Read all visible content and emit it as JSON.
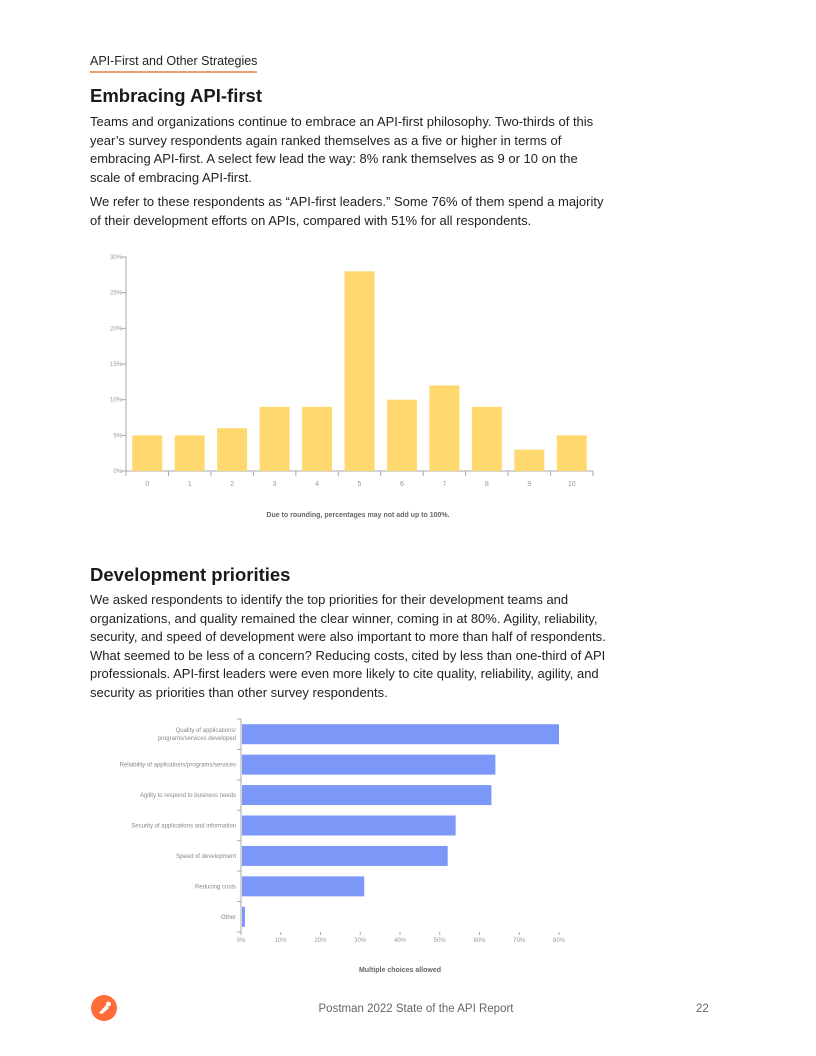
{
  "section_label": "API-First and Other Strategies",
  "section1": {
    "heading": "Embracing API-first",
    "paragraphs": [
      "Teams and organizations continue to embrace an API-first philosophy. Two-thirds of this year’s survey respondents again ranked themselves as a five or higher in terms of embracing API-first. A select few lead the way: 8% rank themselves as 9 or 10 on the scale of embracing API-first.",
      "We refer to these respondents as “API-first leaders.” Some 76% of them spend a majority of their development efforts on APIs, compared with 51% for all respondents."
    ]
  },
  "section2": {
    "heading": "Development priorities",
    "paragraphs": [
      "We asked respondents to identify the top priorities for their development teams and organizations, and quality remained the clear winner, coming in at 80%. Agility, reliability, security, and speed of development were also important to more than half of respondents. What seemed to be less of a concern? Reducing costs, cited by less than one-third of API professionals. API-first leaders were even more likely to cite quality, reliability, agility, and security as priorities than other survey respondents."
    ]
  },
  "chart_data": [
    {
      "type": "bar",
      "orientation": "vertical",
      "categories": [
        "0",
        "1",
        "2",
        "3",
        "4",
        "5",
        "6",
        "7",
        "8",
        "9",
        "10"
      ],
      "values": [
        5,
        5,
        6,
        9,
        9,
        28,
        10,
        12,
        9,
        3,
        5
      ],
      "yticks": [
        "0%",
        "5%",
        "10%",
        "15%",
        "20%",
        "25%",
        "30%"
      ],
      "ylim": [
        0,
        30
      ],
      "grid": false,
      "color": "#FFD970",
      "note": "Due to rounding, percentages may not add up to 100%."
    },
    {
      "type": "bar",
      "orientation": "horizontal",
      "categories": [
        "Quality of applications/ programs/services developed",
        "Reliability of applications/programs/services",
        "Agility to respond to business needs",
        "Security of applications and information",
        "Speed of development",
        "Reducing costs",
        "Other"
      ],
      "values": [
        80,
        64,
        63,
        54,
        52,
        31,
        1
      ],
      "xticks": [
        "0%",
        "10%",
        "20%",
        "30%",
        "40%",
        "50%",
        "60%",
        "70%",
        "80%"
      ],
      "xlim": [
        0,
        80
      ],
      "grid": false,
      "color": "#7B98F8",
      "note": "Multiple choices allowed"
    }
  ],
  "footer": {
    "title": "Postman 2022 State of the API Report",
    "page_number": "22",
    "logo_color": "#FF6C37"
  }
}
